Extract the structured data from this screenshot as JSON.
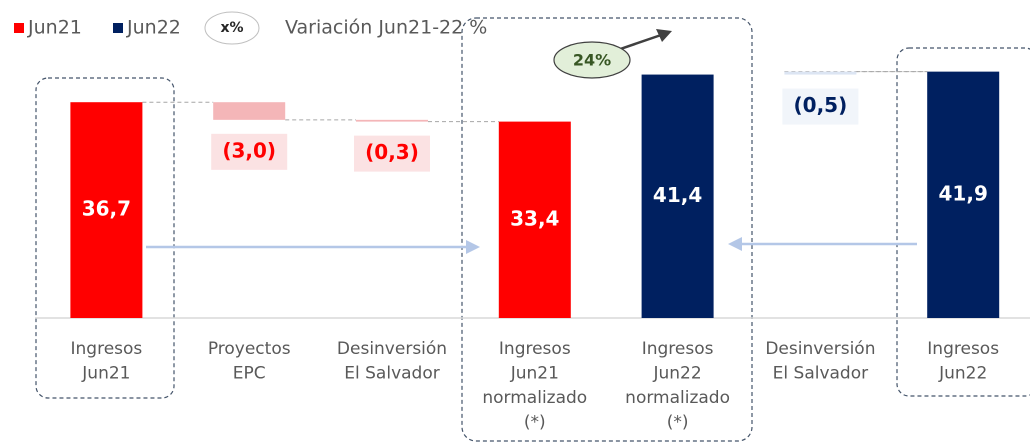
{
  "chart_data": {
    "type": "waterfall",
    "legend": [
      "Jun21",
      "Jun22"
    ],
    "legend_colors": [
      "#ff0000",
      "#002060"
    ],
    "legend_badge": "x%",
    "legend_badge_text": "Variación Jun21-22 %",
    "annotation": "24%",
    "categories": [
      [
        "Ingresos",
        "Jun21"
      ],
      [
        "Proyectos",
        "EPC"
      ],
      [
        "Desinversión",
        "El Salvador"
      ],
      [
        "Ingresos",
        "Jun21",
        "normalizado",
        "(*)"
      ],
      [
        "Ingresos",
        "Jun22",
        "normalizado",
        "(*)"
      ],
      [
        "Desinversión",
        "El Salvador"
      ],
      [
        "Ingresos",
        "Jun22"
      ]
    ],
    "values": [
      36.7,
      -3.0,
      -0.3,
      33.4,
      41.4,
      -0.5,
      41.9
    ],
    "value_labels": [
      "36,7",
      "(3,0)",
      "(0,3)",
      "33,4",
      "41,4",
      "(0,5)",
      "41,9"
    ],
    "measures": [
      "total",
      "relative",
      "relative",
      "total",
      "total",
      "relative_to_next",
      "total"
    ],
    "colors": [
      "#ff0000",
      "#f4b6b8",
      "#f4b6b8",
      "#ff0000",
      "#002060",
      "#dce5f3",
      "#002060"
    ],
    "ylim": [
      0,
      50
    ]
  }
}
